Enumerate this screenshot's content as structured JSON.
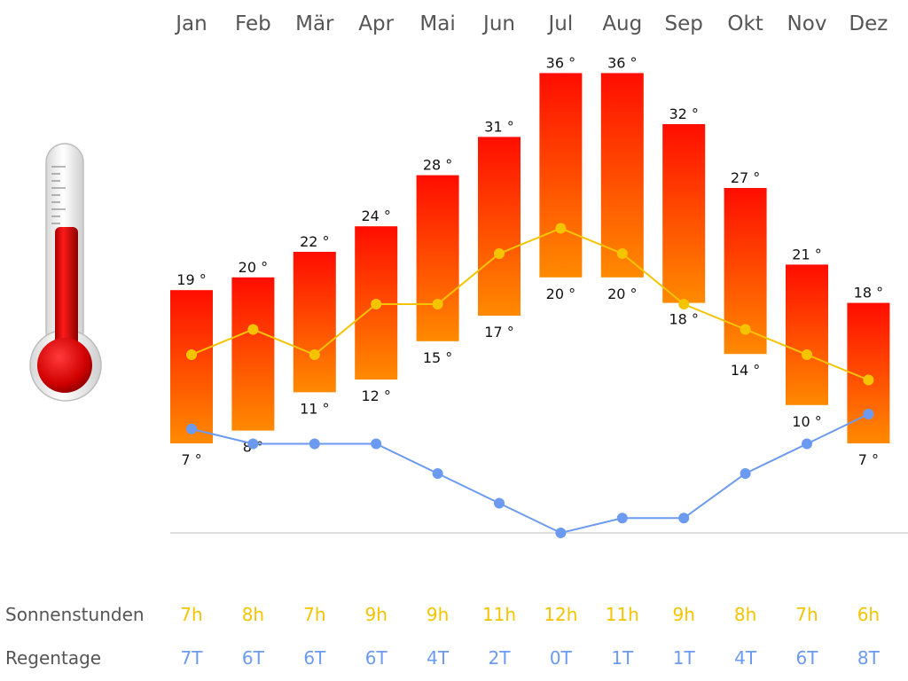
{
  "chart_data": {
    "type": "bar",
    "categories": [
      "Jan",
      "Feb",
      "Mär",
      "Apr",
      "Mai",
      "Jun",
      "Jul",
      "Aug",
      "Sep",
      "Okt",
      "Nov",
      "Dez"
    ],
    "temp_max": [
      19,
      20,
      22,
      24,
      28,
      31,
      36,
      36,
      32,
      27,
      21,
      18
    ],
    "temp_min": [
      7,
      8,
      11,
      12,
      15,
      17,
      20,
      20,
      18,
      14,
      10,
      7
    ],
    "temp_max_labels": [
      "19 °",
      "20 °",
      "22 °",
      "24 °",
      "28 °",
      "31 °",
      "36 °",
      "36 °",
      "32 °",
      "27 °",
      "21 °",
      "18 °"
    ],
    "temp_min_labels": [
      "7 °",
      "8 °",
      "11 °",
      "12 °",
      "15 °",
      "17 °",
      "20 °",
      "20 °",
      "18 °",
      "14 °",
      "10 °",
      "7 °"
    ],
    "sunshine_hours": [
      7,
      8,
      7,
      9,
      9,
      11,
      12,
      11,
      9,
      8,
      7,
      6
    ],
    "rain_days": [
      7,
      6,
      6,
      6,
      4,
      2,
      0,
      1,
      1,
      4,
      6,
      8
    ],
    "rows": {
      "sunshine": {
        "title": "Sonnenstunden",
        "labels": [
          "7h",
          "8h",
          "7h",
          "9h",
          "9h",
          "11h",
          "12h",
          "11h",
          "9h",
          "8h",
          "7h",
          "6h"
        ]
      },
      "rain": {
        "title": "Regentage",
        "labels": [
          "7T",
          "6T",
          "6T",
          "6T",
          "4T",
          "2T",
          "0T",
          "1T",
          "1T",
          "4T",
          "6T",
          "8T"
        ]
      }
    },
    "colors": {
      "bar_top": "#ff0d00",
      "bar_bottom": "#ff8a00",
      "sunshine_line": "#f5c400",
      "rain_line": "#6b9af0",
      "baseline": "#cccccc"
    },
    "icon": "thermometer-icon"
  }
}
